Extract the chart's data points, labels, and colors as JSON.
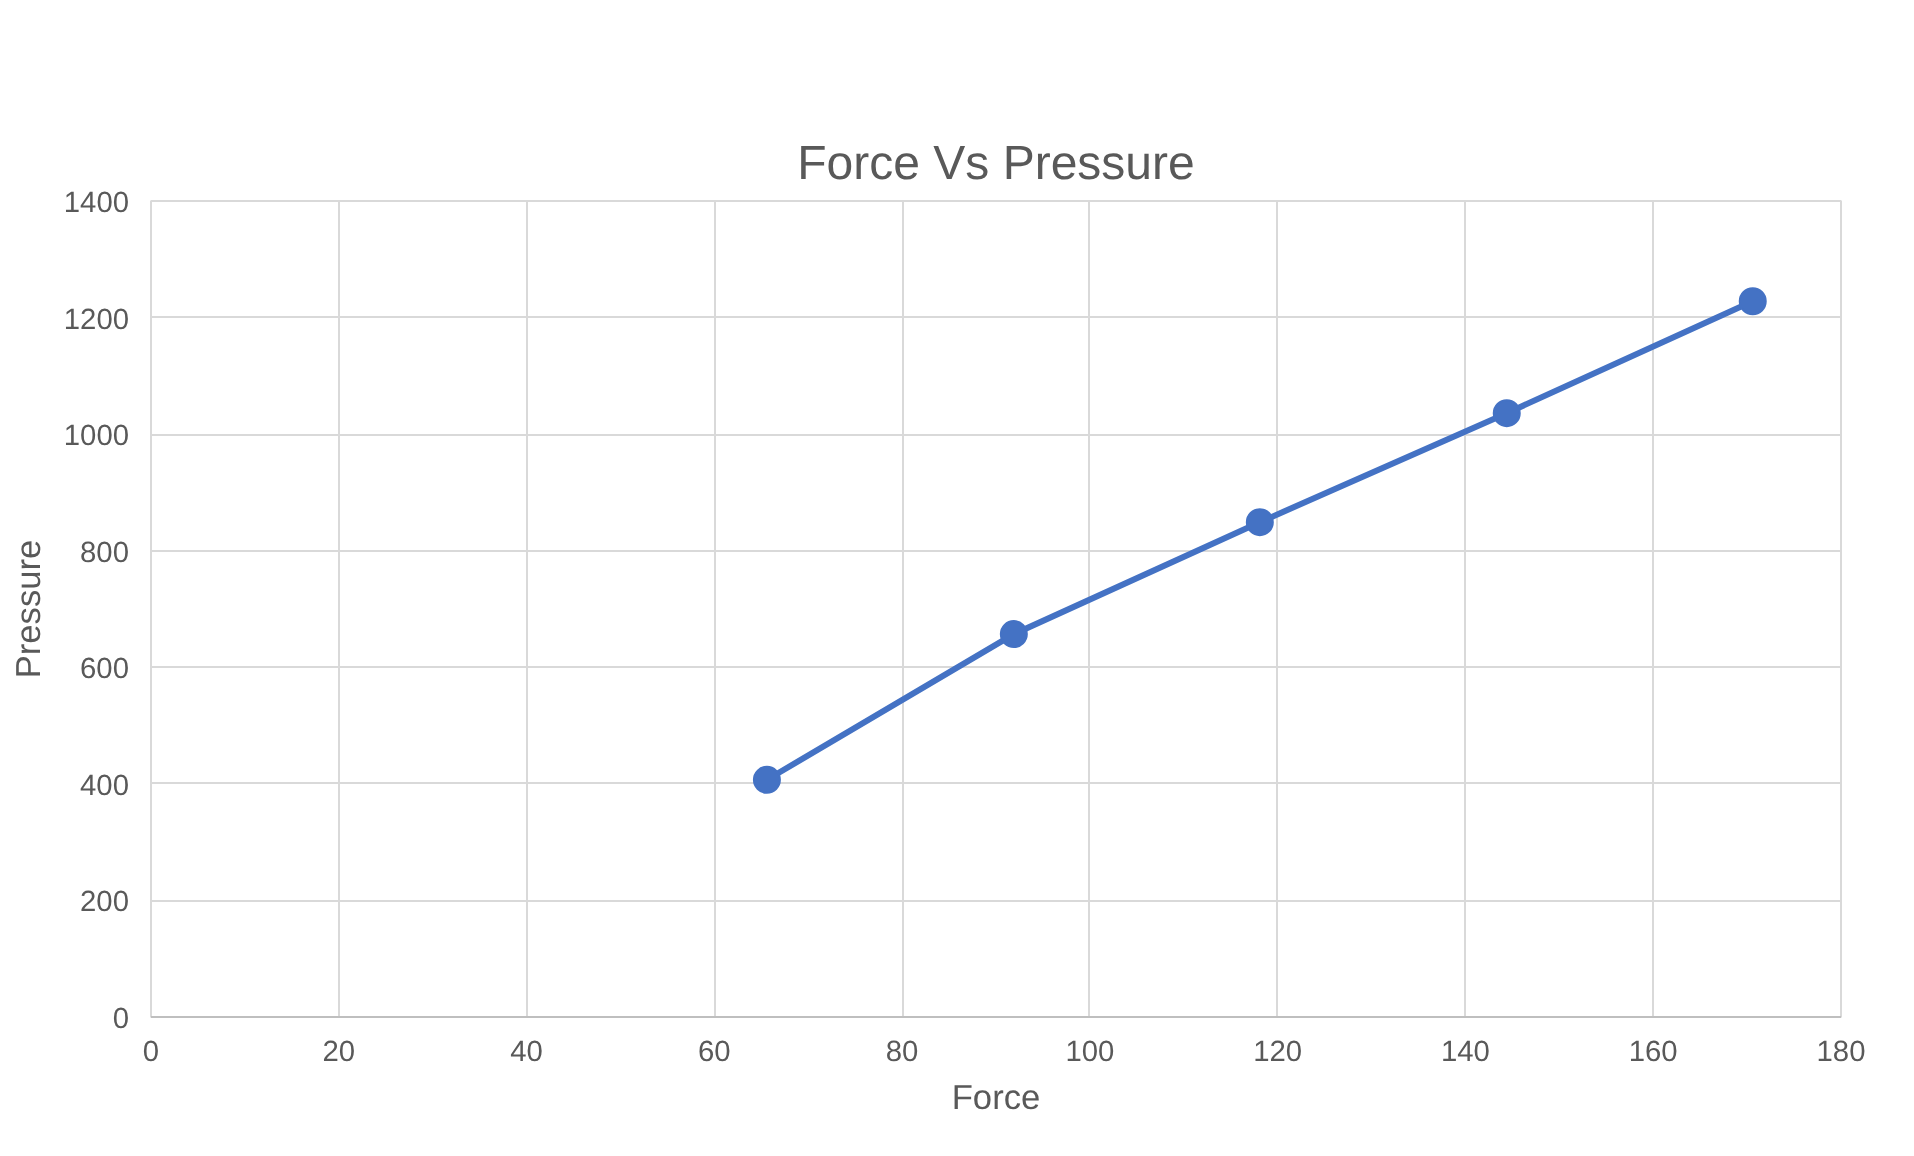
{
  "chart_data": {
    "type": "line",
    "title": "Force Vs Pressure",
    "xlabel": "Force",
    "ylabel": "Pressure",
    "x": [
      65.6,
      91.9,
      118.1,
      144.4,
      170.6
    ],
    "series": [
      {
        "color": "#4472c4",
        "values": [
          407,
          657,
          849,
          1036,
          1228
        ]
      }
    ],
    "xlim": [
      0,
      180
    ],
    "xticks": [
      0,
      20,
      40,
      60,
      80,
      100,
      120,
      140,
      160,
      180
    ],
    "ylim": [
      0,
      1400
    ],
    "yticks": [
      0,
      200,
      400,
      600,
      800,
      1000,
      1200,
      1400
    ],
    "grid": true,
    "marker": "circle",
    "line_style": "solid"
  }
}
